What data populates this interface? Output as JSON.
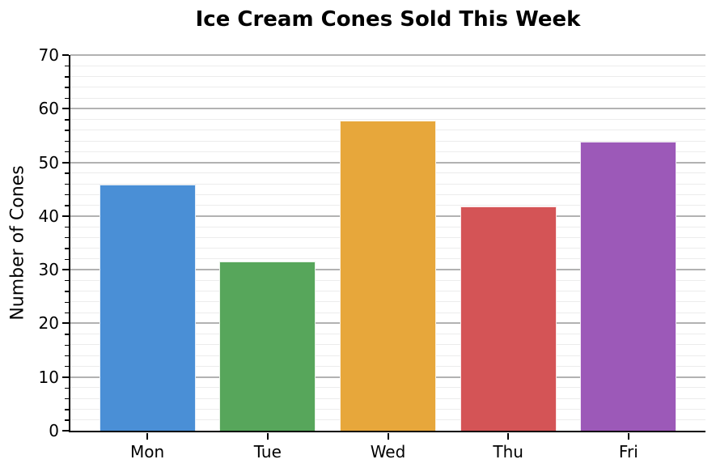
{
  "chart_data": {
    "type": "bar",
    "title": "Ice Cream Cones Sold This Week",
    "xlabel": "",
    "ylabel": "Number of Cones",
    "categories": [
      "Mon",
      "Tue",
      "Wed",
      "Thu",
      "Fri"
    ],
    "values": [
      45.9,
      31.6,
      57.8,
      41.8,
      53.8
    ],
    "bar_colors": [
      "#4a8fd6",
      "#57a65b",
      "#e7a73b",
      "#d45456",
      "#9c59b8"
    ],
    "ylim": [
      0,
      70
    ],
    "yticks": [
      0,
      10,
      20,
      30,
      40,
      50,
      60,
      70
    ],
    "ytick_step_major": 10,
    "ytick_step_minor": 2,
    "grid": "horizontal, major and minor, on",
    "legend": "none",
    "colors": {
      "background": "#ffffff",
      "text": "#000000",
      "axis_spine": "#000000",
      "major_grid": "#b2b2b2",
      "minor_grid": "#ececec"
    }
  }
}
